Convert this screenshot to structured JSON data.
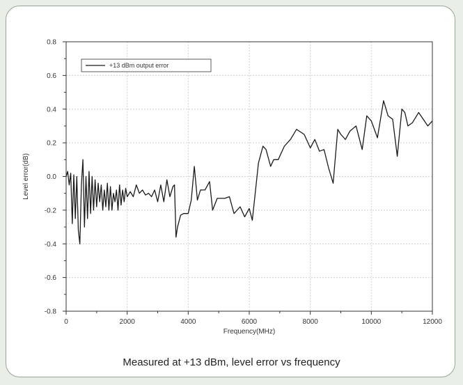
{
  "caption": "Measured at +13 dBm, level error vs frequency",
  "chart_data": {
    "type": "line",
    "xlabel": "Frequency(MHz)",
    "ylabel": "Level error(dB)",
    "xlim": [
      0,
      12000
    ],
    "ylim": [
      -0.8,
      0.8
    ],
    "xticks": [
      0,
      2000,
      4000,
      6000,
      8000,
      10000,
      12000
    ],
    "yticks": [
      -0.8,
      -0.6,
      -0.4,
      -0.2,
      0.0,
      0.2,
      0.4,
      0.6,
      0.8
    ],
    "grid": true,
    "legend_position": "top-left",
    "series": [
      {
        "name": "+13 dBm output error",
        "color": "#1a1a1a",
        "x": [
          0,
          50,
          100,
          150,
          200,
          250,
          300,
          350,
          400,
          450,
          500,
          550,
          600,
          650,
          700,
          750,
          800,
          850,
          900,
          950,
          1000,
          1050,
          1100,
          1150,
          1200,
          1250,
          1300,
          1350,
          1400,
          1450,
          1500,
          1550,
          1600,
          1650,
          1700,
          1750,
          1800,
          1850,
          1900,
          1950,
          2000,
          2100,
          2200,
          2300,
          2400,
          2500,
          2600,
          2700,
          2800,
          2900,
          3000,
          3100,
          3200,
          3300,
          3400,
          3500,
          3550,
          3600,
          3650,
          3750,
          3850,
          4000,
          4100,
          4200,
          4300,
          4400,
          4550,
          4700,
          4800,
          4950,
          5200,
          5350,
          5500,
          5700,
          5850,
          6000,
          6100,
          6300,
          6450,
          6550,
          6700,
          6800,
          6950,
          7150,
          7350,
          7550,
          7800,
          8000,
          8150,
          8300,
          8450,
          8600,
          8750,
          8900,
          9000,
          9150,
          9300,
          9500,
          9700,
          9850,
          10000,
          10200,
          10400,
          10550,
          10700,
          10850,
          11000,
          11100,
          11200,
          11350,
          11550,
          11700,
          11850,
          12000
        ],
        "y": [
          0.0,
          0.03,
          -0.05,
          0.02,
          -0.28,
          0.01,
          -0.25,
          0.0,
          -0.32,
          -0.4,
          -0.05,
          0.1,
          -0.3,
          0.0,
          -0.25,
          0.03,
          -0.22,
          0.0,
          -0.2,
          -0.02,
          -0.18,
          -0.04,
          -0.15,
          -0.05,
          -0.2,
          -0.08,
          -0.18,
          -0.04,
          -0.2,
          -0.06,
          -0.2,
          -0.1,
          -0.15,
          -0.08,
          -0.2,
          -0.05,
          -0.17,
          -0.08,
          -0.15,
          -0.07,
          -0.12,
          -0.09,
          -0.12,
          -0.05,
          -0.1,
          -0.08,
          -0.11,
          -0.1,
          -0.12,
          -0.08,
          -0.15,
          -0.05,
          -0.15,
          -0.02,
          -0.12,
          -0.06,
          -0.05,
          -0.36,
          -0.3,
          -0.23,
          -0.22,
          -0.22,
          -0.14,
          0.06,
          -0.14,
          -0.08,
          -0.08,
          -0.03,
          -0.2,
          -0.13,
          -0.13,
          -0.12,
          -0.22,
          -0.18,
          -0.24,
          -0.19,
          -0.26,
          0.08,
          0.18,
          0.16,
          0.06,
          0.1,
          0.1,
          0.18,
          0.22,
          0.28,
          0.25,
          0.17,
          0.22,
          0.15,
          0.16,
          0.05,
          -0.04,
          0.28,
          0.25,
          0.22,
          0.27,
          0.3,
          0.16,
          0.36,
          0.33,
          0.23,
          0.45,
          0.36,
          0.34,
          0.12,
          0.4,
          0.38,
          0.3,
          0.32,
          0.38,
          0.34,
          0.3,
          0.33
        ]
      }
    ]
  }
}
